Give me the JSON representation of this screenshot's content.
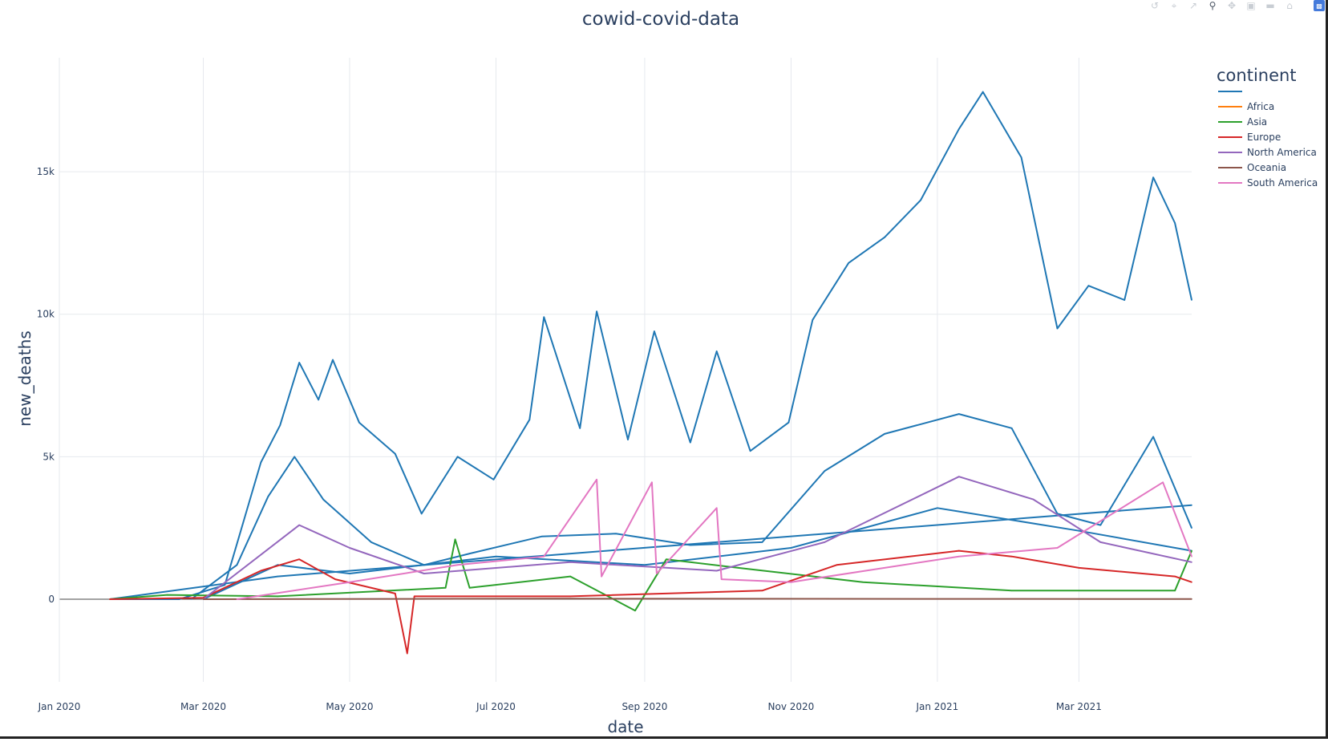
{
  "toolbar": {
    "icons": [
      "reset-icon",
      "autoscale-icon",
      "spike-lines-icon",
      "zoom-icon",
      "pan-icon",
      "zoom-in-icon",
      "zoom-out-icon",
      "home-icon",
      "plotly-logo-icon"
    ]
  },
  "chart_data": {
    "type": "line",
    "title": "cowid-covid-data",
    "xlabel": "date",
    "ylabel": "new_deaths",
    "x_range": [
      "2020-01-01",
      "2021-04-17"
    ],
    "ylim": [
      -2900,
      19000
    ],
    "y_ticks": [
      0,
      5000,
      10000,
      15000
    ],
    "y_tick_labels": [
      "0",
      "5k",
      "10k",
      "15k"
    ],
    "x_ticks": [
      "2020-01-01",
      "2020-03-01",
      "2020-05-01",
      "2020-07-01",
      "2020-09-01",
      "2020-11-01",
      "2021-01-01",
      "2021-03-01"
    ],
    "x_tick_labels": [
      "Jan 2020",
      "Mar 2020",
      "May 2020",
      "Jul 2020",
      "Sep 2020",
      "Nov 2020",
      "Jan 2021",
      "Mar 2021"
    ],
    "grid": true,
    "legend": {
      "title": "continent",
      "placement": "top-right",
      "entries": [
        {
          "name": "",
          "color": "#1f77b4"
        },
        {
          "name": "Africa",
          "color": "#ff7f0e"
        },
        {
          "name": "Asia",
          "color": "#2ca02c"
        },
        {
          "name": "Europe",
          "color": "#d62728"
        },
        {
          "name": "North America",
          "color": "#9467bd"
        },
        {
          "name": "Oceania",
          "color": "#8c564b"
        },
        {
          "name": "South America",
          "color": "#e377c2"
        }
      ]
    },
    "series": [
      {
        "name": "",
        "color": "#1f77b4",
        "points": [
          [
            "2020-01-22",
            0
          ],
          [
            "2020-02-20",
            0
          ],
          [
            "2020-03-10",
            500
          ],
          [
            "2020-03-25",
            4800
          ],
          [
            "2020-04-02",
            6100
          ],
          [
            "2020-04-10",
            8300
          ],
          [
            "2020-04-18",
            7000
          ],
          [
            "2020-04-24",
            8400
          ],
          [
            "2020-05-05",
            6200
          ],
          [
            "2020-05-20",
            5100
          ],
          [
            "2020-05-31",
            3000
          ],
          [
            "2020-06-15",
            5000
          ],
          [
            "2020-06-30",
            4200
          ],
          [
            "2020-07-15",
            6300
          ],
          [
            "2020-07-21",
            9900
          ],
          [
            "2020-08-05",
            6000
          ],
          [
            "2020-08-12",
            10100
          ],
          [
            "2020-08-25",
            5600
          ],
          [
            "2020-09-05",
            9400
          ],
          [
            "2020-09-20",
            5500
          ],
          [
            "2020-10-01",
            8700
          ],
          [
            "2020-10-15",
            5200
          ],
          [
            "2020-10-31",
            6200
          ],
          [
            "2020-11-10",
            9800
          ],
          [
            "2020-11-25",
            11800
          ],
          [
            "2020-12-10",
            12700
          ],
          [
            "2020-12-25",
            14000
          ],
          [
            "2021-01-10",
            16500
          ],
          [
            "2021-01-20",
            17800
          ],
          [
            "2021-02-05",
            15500
          ],
          [
            "2021-02-20",
            9500
          ],
          [
            "2021-03-05",
            11000
          ],
          [
            "2021-03-20",
            10500
          ],
          [
            "2021-04-01",
            14800
          ],
          [
            "2021-04-10",
            13200
          ],
          [
            "2021-04-17",
            10500
          ]
        ]
      },
      {
        "name": "",
        "color": "#1f77b4",
        "points": [
          [
            "2020-02-25",
            0
          ],
          [
            "2020-03-15",
            1200
          ],
          [
            "2020-03-28",
            3600
          ],
          [
            "2020-04-08",
            5000
          ],
          [
            "2020-04-20",
            3500
          ],
          [
            "2020-05-10",
            2000
          ],
          [
            "2020-06-01",
            1200
          ],
          [
            "2020-06-20",
            1600
          ],
          [
            "2020-07-20",
            2200
          ],
          [
            "2020-08-20",
            2300
          ],
          [
            "2020-09-20",
            1900
          ],
          [
            "2020-10-20",
            2000
          ],
          [
            "2020-11-15",
            4500
          ],
          [
            "2020-12-10",
            5800
          ],
          [
            "2021-01-10",
            6500
          ],
          [
            "2021-02-01",
            6000
          ],
          [
            "2021-02-20",
            3000
          ],
          [
            "2021-03-10",
            2600
          ],
          [
            "2021-04-01",
            5700
          ],
          [
            "2021-04-17",
            2500
          ]
        ]
      },
      {
        "name": "",
        "color": "#1f77b4",
        "points": [
          [
            "2020-01-22",
            0
          ],
          [
            "2020-04-01",
            800
          ],
          [
            "2021-04-17",
            3300
          ]
        ]
      },
      {
        "name": "",
        "color": "#1f77b4",
        "points": [
          [
            "2020-03-01",
            0
          ],
          [
            "2020-04-01",
            1200
          ],
          [
            "2020-05-01",
            900
          ],
          [
            "2020-07-01",
            1500
          ],
          [
            "2020-09-01",
            1200
          ],
          [
            "2020-11-01",
            1800
          ],
          [
            "2021-01-01",
            3200
          ],
          [
            "2021-03-01",
            2400
          ],
          [
            "2021-04-17",
            1700
          ]
        ]
      },
      {
        "name": "Asia",
        "color": "#2ca02c",
        "points": [
          [
            "2020-01-22",
            0
          ],
          [
            "2020-02-15",
            150
          ],
          [
            "2020-04-01",
            100
          ],
          [
            "2020-06-10",
            400
          ],
          [
            "2020-06-14",
            2100
          ],
          [
            "2020-06-20",
            400
          ],
          [
            "2020-08-01",
            800
          ],
          [
            "2020-08-28",
            -400
          ],
          [
            "2020-09-10",
            1400
          ],
          [
            "2020-10-10",
            1100
          ],
          [
            "2020-12-01",
            600
          ],
          [
            "2021-02-01",
            300
          ],
          [
            "2021-04-10",
            300
          ],
          [
            "2021-04-17",
            1700
          ]
        ]
      },
      {
        "name": "Europe",
        "color": "#d62728",
        "points": [
          [
            "2020-01-22",
            0
          ],
          [
            "2020-03-01",
            50
          ],
          [
            "2020-03-25",
            1000
          ],
          [
            "2020-04-10",
            1400
          ],
          [
            "2020-04-25",
            700
          ],
          [
            "2020-05-20",
            200
          ],
          [
            "2020-05-25",
            -1900
          ],
          [
            "2020-05-28",
            100
          ],
          [
            "2020-08-01",
            100
          ],
          [
            "2020-10-20",
            300
          ],
          [
            "2020-11-20",
            1200
          ],
          [
            "2021-01-10",
            1700
          ],
          [
            "2021-02-01",
            1500
          ],
          [
            "2021-03-01",
            1100
          ],
          [
            "2021-04-10",
            800
          ],
          [
            "2021-04-17",
            600
          ]
        ]
      },
      {
        "name": "North America",
        "color": "#9467bd",
        "points": [
          [
            "2020-03-01",
            0
          ],
          [
            "2020-04-10",
            2600
          ],
          [
            "2020-05-01",
            1800
          ],
          [
            "2020-06-01",
            900
          ],
          [
            "2020-08-01",
            1300
          ],
          [
            "2020-10-01",
            1000
          ],
          [
            "2020-11-15",
            2000
          ],
          [
            "2021-01-10",
            4300
          ],
          [
            "2021-02-10",
            3500
          ],
          [
            "2021-03-10",
            2000
          ],
          [
            "2021-04-17",
            1300
          ]
        ]
      },
      {
        "name": "Oceania",
        "color": "#8c564b",
        "points": [
          [
            "2020-03-01",
            0
          ],
          [
            "2020-08-01",
            20
          ],
          [
            "2021-04-17",
            5
          ]
        ]
      },
      {
        "name": "South America",
        "color": "#e377c2",
        "points": [
          [
            "2020-03-15",
            0
          ],
          [
            "2020-05-01",
            600
          ],
          [
            "2020-06-15",
            1200
          ],
          [
            "2020-07-21",
            1500
          ],
          [
            "2020-08-12",
            4200
          ],
          [
            "2020-08-14",
            800
          ],
          [
            "2020-09-04",
            4100
          ],
          [
            "2020-09-06",
            900
          ],
          [
            "2020-10-01",
            3200
          ],
          [
            "2020-10-03",
            700
          ],
          [
            "2020-11-01",
            600
          ],
          [
            "2021-01-10",
            1500
          ],
          [
            "2021-02-20",
            1800
          ],
          [
            "2021-04-05",
            4100
          ],
          [
            "2021-04-17",
            1500
          ]
        ]
      }
    ]
  }
}
